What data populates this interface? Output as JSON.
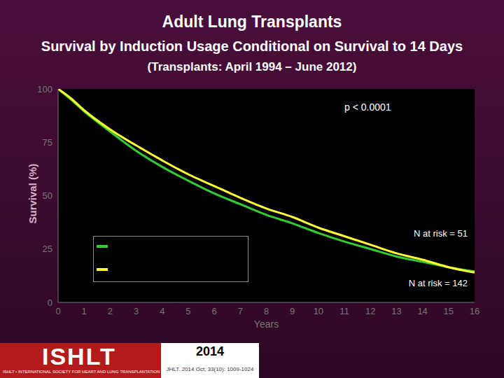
{
  "chart_data": {
    "type": "line",
    "title": "Adult Lung Transplants",
    "subtitle": "Survival by Induction Usage Conditional on Survival to 14 Days",
    "subtitle_note": "(Transplants: April 1994 – June 2012)",
    "x_label": "Years",
    "y_label": "Survival (%)",
    "x": [
      0,
      0.5,
      1,
      2,
      3,
      4,
      5,
      6,
      7,
      8,
      9,
      10,
      11,
      12,
      13,
      14,
      15,
      16
    ],
    "series": [
      {
        "color": "#33cc33",
        "annotation": "N at risk = 51",
        "values": [
          100,
          95,
          89.5,
          80,
          71,
          63.5,
          57,
          51,
          46,
          41,
          37,
          32.5,
          28.5,
          25,
          21.5,
          19,
          16.5,
          14.5
        ]
      },
      {
        "color": "#ffff33",
        "annotation": "N at risk = 142",
        "values": [
          100,
          95.5,
          90,
          81,
          73.5,
          66.5,
          60,
          54.5,
          49,
          44,
          40,
          35,
          31,
          27,
          23,
          20,
          16.5,
          14
        ]
      }
    ],
    "xlim": [
      0,
      16
    ],
    "xticks": [
      0,
      1,
      2,
      3,
      4,
      5,
      6,
      7,
      8,
      9,
      10,
      11,
      12,
      13,
      14,
      15,
      16
    ],
    "ylim": [
      0,
      100
    ],
    "yticks": [
      0,
      25,
      50,
      75,
      100
    ],
    "grid": false,
    "legend": "lower left",
    "annotations": [
      {
        "text": "p < 0.0001"
      }
    ]
  },
  "footer": {
    "logo": "ISHLT",
    "logo_tagline": "ISHLT • INTERNATIONAL SOCIETY FOR HEART AND LUNG TRANSPLANTATION",
    "year": "2014",
    "citation": "JHLT. 2014 Oct; 33(10): 1009-1024"
  }
}
